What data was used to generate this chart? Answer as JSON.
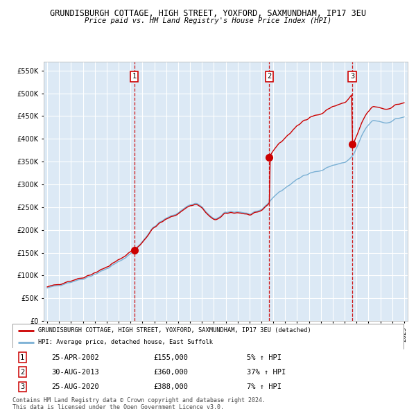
{
  "title": "GRUNDISBURGH COTTAGE, HIGH STREET, YOXFORD, SAXMUNDHAM, IP17 3EU",
  "subtitle": "Price paid vs. HM Land Registry's House Price Index (HPI)",
  "legend_label_red": "GRUNDISBURGH COTTAGE, HIGH STREET, YOXFORD, SAXMUNDHAM, IP17 3EU (detached)",
  "legend_label_blue": "HPI: Average price, detached house, East Suffolk",
  "footer1": "Contains HM Land Registry data © Crown copyright and database right 2024.",
  "footer2": "This data is licensed under the Open Government Licence v3.0.",
  "sales": [
    {
      "num": 1,
      "date": "25-APR-2002",
      "price": 155000,
      "x": 2002.32,
      "pct": "5%"
    },
    {
      "num": 2,
      "date": "30-AUG-2013",
      "price": 360000,
      "x": 2013.67,
      "pct": "37%"
    },
    {
      "num": 3,
      "date": "25-AUG-2020",
      "price": 388000,
      "x": 2020.65,
      "pct": "7%"
    }
  ],
  "ylim": [
    0,
    570000
  ],
  "yticks": [
    0,
    50000,
    100000,
    150000,
    200000,
    250000,
    300000,
    350000,
    400000,
    450000,
    500000,
    550000
  ],
  "background_color": "#dce9f5",
  "grid_color": "#ffffff",
  "hpi_color": "#7ab0d4",
  "price_color": "#cc0000",
  "vline_color": "#cc0000"
}
